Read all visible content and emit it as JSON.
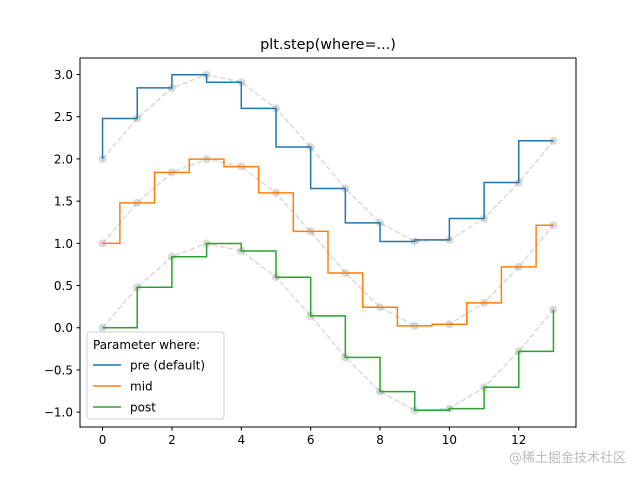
{
  "chart_data": {
    "type": "line",
    "title": "plt.step(where=...)",
    "xlabel": "",
    "ylabel": "",
    "xlim": [
      -0.65,
      13.65
    ],
    "ylim": [
      -1.176,
      3.196
    ],
    "grid": false,
    "x": [
      0,
      1,
      2,
      3,
      4,
      5,
      6,
      7,
      8,
      9,
      10,
      11,
      12,
      13
    ],
    "xticks": [
      "0",
      "2",
      "4",
      "6",
      "8",
      "10",
      "12"
    ],
    "yticks": [
      "−1.0",
      "−0.5",
      "0.0",
      "0.5",
      "1.0",
      "1.5",
      "2.0",
      "2.5",
      "3.0"
    ],
    "legend": {
      "title": "Parameter where:",
      "placement": "lower left"
    },
    "series": [
      {
        "name": "pre (default)",
        "where": "pre",
        "color": "#1f77b4",
        "values": [
          2.0,
          2.4794,
          2.8415,
          2.9975,
          2.9093,
          2.5985,
          2.1411,
          1.6492,
          1.2432,
          1.0225,
          1.0411,
          1.2945,
          1.7206,
          2.2151
        ]
      },
      {
        "name": "mid",
        "where": "mid",
        "color": "#ff7f0e",
        "values": [
          1.0,
          1.4794,
          1.8415,
          1.9975,
          1.9093,
          1.5985,
          1.1411,
          0.6492,
          0.2432,
          0.0225,
          0.0411,
          0.2945,
          0.7206,
          1.2151
        ]
      },
      {
        "name": "post",
        "where": "post",
        "color": "#2ca02c",
        "values": [
          0.0,
          0.4794,
          0.8415,
          0.9975,
          0.9093,
          0.5985,
          0.1411,
          -0.3508,
          -0.7568,
          -0.9775,
          -0.9589,
          -0.7055,
          -0.2794,
          0.2151
        ]
      }
    ],
    "reference_markers": {
      "color": "#808080",
      "alpha": 0.3,
      "style": "o--"
    }
  },
  "watermark": "@稀土掘金技术社区"
}
